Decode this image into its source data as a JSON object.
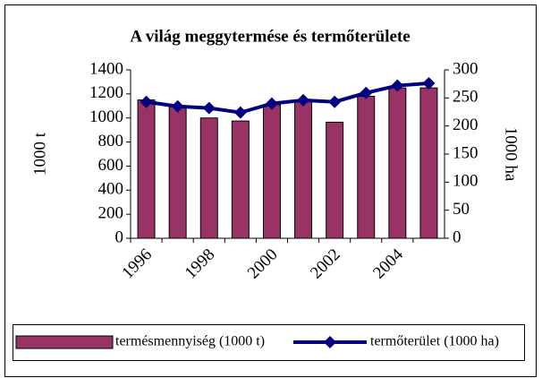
{
  "chart_data": {
    "type": "bar_line",
    "title": "A világ meggytermése és termőterülete",
    "categories": [
      "1996",
      null,
      "1998",
      null,
      "2000",
      null,
      "2002",
      null,
      "2004",
      null
    ],
    "series": [
      {
        "name": "termésmennyiség (1000 t)",
        "type": "bar",
        "color": "#993366",
        "values": [
          1150,
          1100,
          1000,
          975,
          1110,
          1150,
          965,
          1180,
          1250,
          1250
        ]
      },
      {
        "name": "termőterület (1000 ha)",
        "type": "line",
        "axis": "y2",
        "color": "#000080",
        "values": [
          243,
          235,
          232,
          224,
          240,
          246,
          243,
          259,
          272,
          276
        ]
      }
    ],
    "ylabel": "1000 t",
    "y2label": "1000 ha",
    "ylim": [
      0,
      1400
    ],
    "yticks": [
      0,
      200,
      400,
      600,
      800,
      1000,
      1200,
      1400
    ],
    "y2lim": [
      0,
      300
    ],
    "y2ticks": [
      0,
      50,
      100,
      150,
      200,
      250,
      300
    ],
    "legend": "bottom",
    "grid": false
  }
}
